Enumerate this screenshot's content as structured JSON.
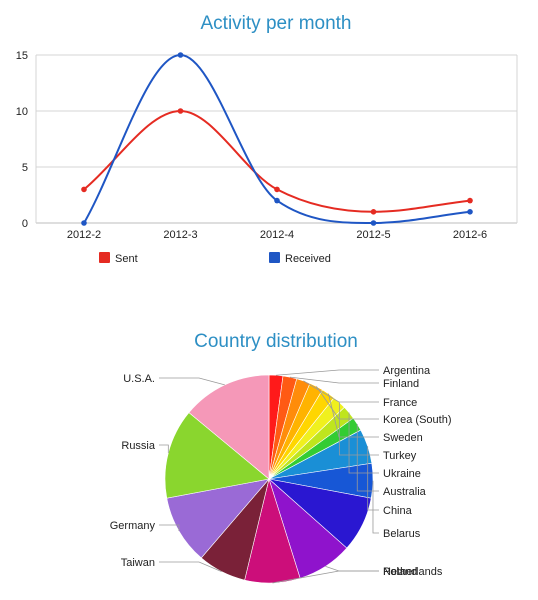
{
  "chart_data": [
    {
      "type": "line",
      "title": "Activity per month",
      "xlabel": "",
      "ylabel": "",
      "categories": [
        "2012-2",
        "2012-3",
        "2012-4",
        "2012-5",
        "2012-6"
      ],
      "ylim": [
        0,
        15
      ],
      "yticks": [
        0,
        5,
        10,
        15
      ],
      "grid": true,
      "legend_position": "bottom",
      "series": [
        {
          "name": "Sent",
          "color": "#e52b22",
          "values": [
            3,
            10,
            3,
            1,
            2
          ]
        },
        {
          "name": "Received",
          "color": "#1f56c4",
          "values": [
            0,
            15,
            2,
            0,
            1
          ]
        }
      ]
    },
    {
      "type": "pie",
      "title": "Country distribution",
      "legend_position": "labels",
      "slices": [
        {
          "label": "Argentina",
          "value": 2.2,
          "color": "#ff1a1a"
        },
        {
          "label": "Finland",
          "value": 2.2,
          "color": "#ff5a14"
        },
        {
          "label": "France",
          "value": 2.2,
          "color": "#ff8c0a"
        },
        {
          "label": "Korea (South)",
          "value": 2.2,
          "color": "#ffb300"
        },
        {
          "label": "Sweden",
          "value": 2.2,
          "color": "#ffd600"
        },
        {
          "label": "Turkey",
          "value": 2.2,
          "color": "#f0f01e"
        },
        {
          "label": "Ukraine",
          "value": 2.2,
          "color": "#bfe51e"
        },
        {
          "label": "Australia",
          "value": 2.2,
          "color": "#33cc33"
        },
        {
          "label": "China",
          "value": 5.5,
          "color": "#1a8fd6"
        },
        {
          "label": "Belarus",
          "value": 5.5,
          "color": "#1757d6"
        },
        {
          "label": "",
          "value": 8.8,
          "color": "#2a17d1"
        },
        {
          "label": "Netherlands",
          "value": 8.8,
          "color": "#8f13cc"
        },
        {
          "label": "Poland",
          "value": 8.8,
          "color": "#cc0e7a"
        },
        {
          "label": "Taiwan",
          "value": 7.7,
          "color": "#7a2138"
        },
        {
          "label": "Germany",
          "value": 11.0,
          "color": "#9a6ad6"
        },
        {
          "label": "Russia",
          "value": 14.3,
          "color": "#8ad62e"
        },
        {
          "label": "U.S.A.",
          "value": 14.3,
          "color": "#f598b8"
        }
      ]
    }
  ]
}
